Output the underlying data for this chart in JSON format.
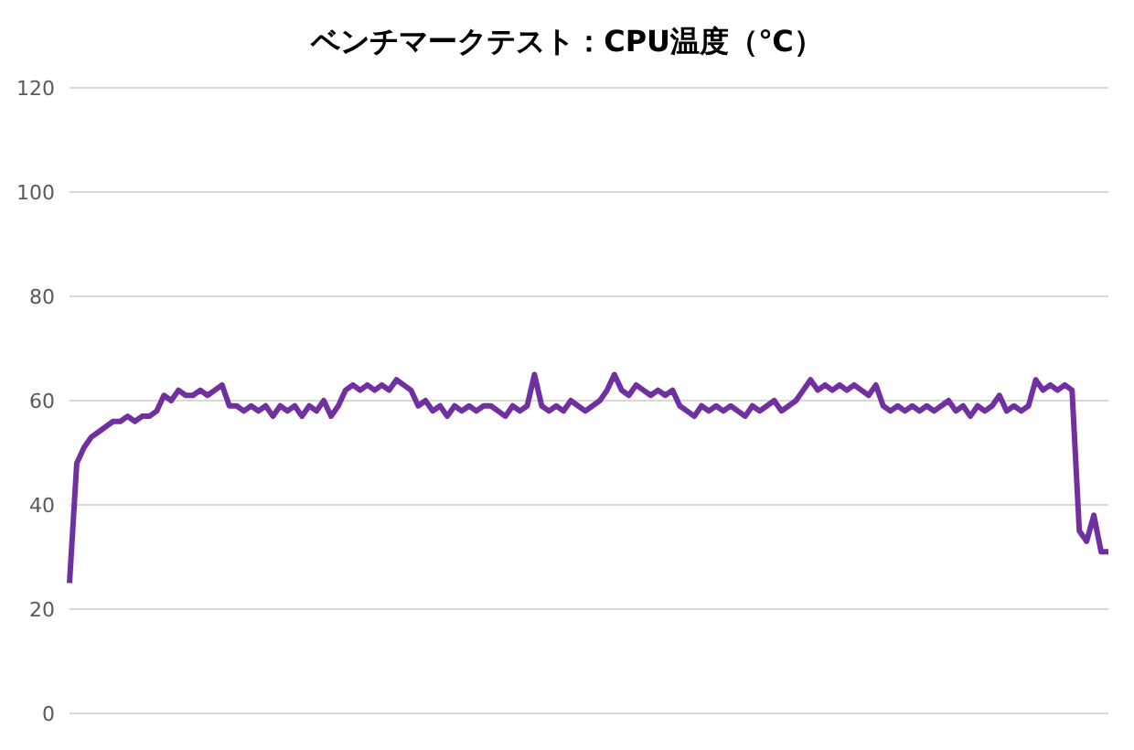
{
  "chart_data": {
    "type": "line",
    "title": "ベンチマークテスト：CPU温度（℃）",
    "categories": [
      null,
      null,
      null,
      null,
      null,
      null,
      null,
      null,
      null,
      null,
      null,
      null,
      null,
      null,
      null,
      null,
      null,
      null,
      null,
      null,
      null,
      null,
      null,
      null,
      null,
      null,
      null,
      null,
      null,
      null,
      null,
      null,
      null,
      null,
      null,
      null,
      null,
      null,
      null,
      null,
      null,
      null,
      null,
      null,
      null,
      null,
      null,
      null,
      null,
      null,
      null,
      null,
      null,
      null,
      null,
      null,
      null,
      null,
      null,
      null,
      null,
      null,
      null,
      null,
      null,
      null,
      null,
      null,
      null,
      null,
      null,
      null,
      null,
      null,
      null,
      null,
      null,
      null,
      null,
      null,
      null,
      null,
      null,
      null,
      null,
      null,
      null,
      null,
      null,
      null,
      null,
      null,
      null,
      null,
      null,
      null,
      null,
      null,
      null,
      null,
      null,
      null,
      null,
      null,
      null,
      null,
      null,
      null,
      null,
      null,
      null,
      null,
      null,
      null,
      null,
      null,
      null,
      null,
      null,
      null,
      null,
      null,
      null,
      null,
      null,
      null,
      null,
      null,
      null,
      null,
      null,
      null,
      null,
      null,
      null,
      null,
      null,
      null,
      null,
      null,
      null,
      null,
      null,
      null
    ],
    "series": [
      {
        "color": "#7030a0",
        "values": [
          25,
          48,
          51,
          53,
          54,
          55,
          56,
          56,
          57,
          56,
          57,
          57,
          58,
          61,
          60,
          62,
          61,
          61,
          62,
          61,
          62,
          63,
          59,
          59,
          58,
          59,
          58,
          59,
          57,
          59,
          58,
          59,
          57,
          59,
          58,
          60,
          57,
          59,
          62,
          63,
          62,
          63,
          62,
          63,
          62,
          64,
          63,
          62,
          59,
          60,
          58,
          59,
          57,
          59,
          58,
          59,
          58,
          59,
          59,
          58,
          57,
          59,
          58,
          59,
          65,
          59,
          58,
          59,
          58,
          60,
          59,
          58,
          59,
          60,
          62,
          65,
          62,
          61,
          63,
          62,
          61,
          62,
          61,
          62,
          59,
          58,
          57,
          59,
          58,
          59,
          58,
          59,
          58,
          57,
          59,
          58,
          59,
          60,
          58,
          59,
          60,
          62,
          64,
          62,
          63,
          62,
          63,
          62,
          63,
          62,
          61,
          63,
          59,
          58,
          59,
          58,
          59,
          58,
          59,
          58,
          59,
          60,
          58,
          59,
          57,
          59,
          58,
          59,
          61,
          58,
          59,
          58,
          59,
          64,
          62,
          63,
          62,
          63,
          62,
          35,
          33,
          38,
          31,
          31
        ]
      }
    ],
    "ylim": [
      0,
      120
    ],
    "yticks": [
      0,
      20,
      40,
      60,
      80,
      100,
      120
    ],
    "grid": "y",
    "marker": "none",
    "line_style": "solid",
    "tick_labels": "y"
  }
}
